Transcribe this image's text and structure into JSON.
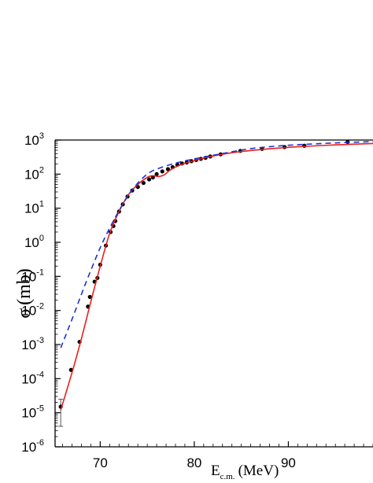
{
  "chart_data": {
    "type": "scatter",
    "title": "",
    "xlabel": {
      "main": "E",
      "sub": "c.m.",
      "unit": "(MeV)"
    },
    "ylabel": {
      "symbol": "σ",
      "unit": "(mb)"
    },
    "y_scale": "log",
    "xlim": [
      65.2,
      99.0
    ],
    "ylim": [
      1e-06,
      1000
    ],
    "grid": false,
    "legend": "none",
    "x_ticks": [
      {
        "value": 70,
        "label": "70"
      },
      {
        "value": 80,
        "label": "80"
      },
      {
        "value": 90,
        "label": "90"
      }
    ],
    "y_ticks": [
      {
        "value": 1000,
        "base": "10",
        "exp": "3"
      },
      {
        "value": 100,
        "base": "10",
        "exp": "2"
      },
      {
        "value": 10,
        "base": "10",
        "exp": "1"
      },
      {
        "value": 1,
        "base": "10",
        "exp": "0"
      },
      {
        "value": 0.1,
        "base": "10",
        "exp": "-1"
      },
      {
        "value": 0.01,
        "base": "10",
        "exp": "-2"
      },
      {
        "value": 0.001,
        "base": "10",
        "exp": "-3"
      },
      {
        "value": 0.0001,
        "base": "10",
        "exp": "-4"
      },
      {
        "value": 1e-05,
        "base": "10",
        "exp": "-5"
      },
      {
        "value": 1e-06,
        "base": "10",
        "exp": "-6"
      }
    ],
    "series": [
      {
        "style": "points",
        "color": "#000000",
        "x": [
          65.8,
          66.9,
          67.8,
          68.7,
          68.9,
          69.4,
          69.7,
          70.0,
          70.6,
          71.1,
          71.4,
          71.6,
          72.0,
          72.4,
          72.9,
          73.4,
          74.0,
          74.6,
          75.2,
          75.6,
          76.0,
          76.6,
          77.2,
          77.7,
          78.2,
          78.7,
          79.2,
          79.7,
          80.2,
          80.7,
          81.2,
          81.7,
          82.8,
          84.9,
          87.2,
          89.6,
          91.7,
          96.3
        ],
        "y": [
          1.5e-05,
          0.00018,
          0.0012,
          0.013,
          0.025,
          0.07,
          0.09,
          0.22,
          0.8,
          2.0,
          3.0,
          4.2,
          8.0,
          13.0,
          22.0,
          33.0,
          42.0,
          55.0,
          70.0,
          80.0,
          100.0,
          120.0,
          140.0,
          160.0,
          190.0,
          205.0,
          220.0,
          240.0,
          260.0,
          280.0,
          300.0,
          330.0,
          380.0,
          480.0,
          550.0,
          620.0,
          680.0,
          880.0
        ],
        "err_low": [
          4e-06,
          null,
          null,
          null,
          null,
          null,
          null,
          null,
          null,
          null,
          null,
          null,
          null,
          null,
          null,
          null,
          null,
          null,
          null,
          null,
          null,
          null,
          null,
          null,
          null,
          null,
          null,
          null,
          null,
          null,
          null,
          null,
          null,
          null,
          null,
          null,
          null,
          null
        ],
        "err_high": [
          2.5e-05,
          null,
          null,
          null,
          null,
          null,
          null,
          null,
          null,
          null,
          null,
          null,
          null,
          null,
          null,
          null,
          null,
          null,
          null,
          null,
          null,
          null,
          null,
          null,
          null,
          null,
          null,
          null,
          null,
          null,
          null,
          null,
          null,
          null,
          null,
          null,
          null,
          null
        ]
      },
      {
        "style": "solid",
        "color": "#e8201c",
        "x": [
          65.8,
          67.0,
          68.0,
          69.0,
          70.0,
          71.0,
          72.0,
          73.0,
          74.0,
          75.0,
          75.6,
          76.2,
          76.8,
          77.5,
          78.5,
          80.0,
          82.0,
          85.0,
          90.0,
          95.0,
          99.0
        ],
        "y": [
          1.2e-05,
          0.00015,
          0.0015,
          0.018,
          0.2,
          1.8,
          8.0,
          25.0,
          50.0,
          80.0,
          90.0,
          85.0,
          95.0,
          135.0,
          185.0,
          250.0,
          340.0,
          460.0,
          610.0,
          720.0,
          790.0
        ]
      },
      {
        "style": "dashed",
        "color": "#1e32d2",
        "x": [
          65.8,
          67.0,
          68.0,
          69.0,
          70.0,
          71.0,
          72.0,
          73.0,
          74.0,
          75.0,
          76.0,
          78.0,
          80.0,
          83.0,
          86.0,
          90.0,
          95.0,
          99.0
        ],
        "y": [
          0.0008,
          0.0055,
          0.03,
          0.15,
          0.7,
          2.6,
          8.5,
          24.0,
          55.0,
          100.0,
          140.0,
          210.0,
          280.0,
          400.0,
          560.0,
          700.0,
          820.0,
          900.0
        ]
      }
    ]
  }
}
